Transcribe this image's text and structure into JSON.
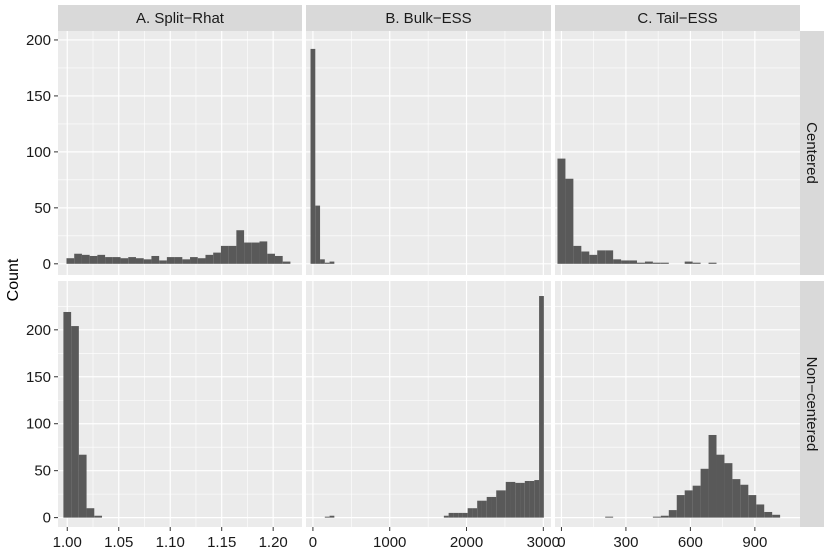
{
  "chart_data": {
    "type": "bar",
    "title": "",
    "xlabel": "",
    "ylabel": "Count",
    "grid": true,
    "colors": {
      "panel_bg": "#ebebeb",
      "grid": "#ffffff",
      "bar": "#595959",
      "strip_bg": "#d9d9d9"
    },
    "columns": [
      {
        "label": "A. Split−Rhat",
        "xlim": [
          0.991,
          1.228
        ],
        "xticks": [
          1.0,
          1.05,
          1.1,
          1.15,
          1.2
        ],
        "xtick_labels": [
          "1.00",
          "1.05",
          "1.10",
          "1.15",
          "1.20"
        ],
        "bin_width": 0.0075
      },
      {
        "label": "B. Bulk−ESS",
        "xlim": [
          -90,
          3100
        ],
        "xticks": [
          0,
          1000,
          2000,
          3000
        ],
        "xtick_labels": [
          "0",
          "1000",
          "2000",
          "3000"
        ],
        "bin_width": 62
      },
      {
        "label": "C. Tail−ESS",
        "xlim": [
          -30,
          1110
        ],
        "xticks": [
          0,
          300,
          600,
          900
        ],
        "xtick_labels": [
          "0",
          "300",
          "600",
          "900"
        ],
        "bin_width": 37
      }
    ],
    "rows": [
      {
        "label": "Centered",
        "ylim": [
          -10,
          208
        ],
        "yticks": [
          0,
          50,
          100,
          150,
          200
        ],
        "ytick_labels": [
          "0",
          "50",
          "100",
          "150",
          "200"
        ]
      },
      {
        "label": "Non−centered",
        "ylim": [
          -10,
          252
        ],
        "yticks": [
          0,
          50,
          100,
          150,
          200
        ],
        "ytick_labels": [
          "0",
          "50",
          "100",
          "150",
          "200"
        ]
      }
    ],
    "panels": [
      {
        "row": 0,
        "col": 0,
        "bins": [
          {
            "x": 1.003,
            "count": 5
          },
          {
            "x": 1.0105,
            "count": 9
          },
          {
            "x": 1.018,
            "count": 8
          },
          {
            "x": 1.0255,
            "count": 7
          },
          {
            "x": 1.033,
            "count": 8
          },
          {
            "x": 1.0405,
            "count": 6
          },
          {
            "x": 1.048,
            "count": 6
          },
          {
            "x": 1.0555,
            "count": 5
          },
          {
            "x": 1.063,
            "count": 6
          },
          {
            "x": 1.0705,
            "count": 5
          },
          {
            "x": 1.078,
            "count": 4
          },
          {
            "x": 1.0855,
            "count": 7
          },
          {
            "x": 1.093,
            "count": 3
          },
          {
            "x": 1.1005,
            "count": 6
          },
          {
            "x": 1.108,
            "count": 6
          },
          {
            "x": 1.1155,
            "count": 4
          },
          {
            "x": 1.123,
            "count": 6
          },
          {
            "x": 1.1305,
            "count": 5
          },
          {
            "x": 1.138,
            "count": 8
          },
          {
            "x": 1.1455,
            "count": 10
          },
          {
            "x": 1.153,
            "count": 16
          },
          {
            "x": 1.1605,
            "count": 16
          },
          {
            "x": 1.168,
            "count": 30
          },
          {
            "x": 1.1755,
            "count": 19
          },
          {
            "x": 1.183,
            "count": 19
          },
          {
            "x": 1.1905,
            "count": 20
          },
          {
            "x": 1.198,
            "count": 9
          },
          {
            "x": 1.2055,
            "count": 7
          },
          {
            "x": 1.213,
            "count": 2
          }
        ]
      },
      {
        "row": 0,
        "col": 1,
        "bins": [
          {
            "x": 0,
            "count": 192
          },
          {
            "x": 62,
            "count": 52
          },
          {
            "x": 124,
            "count": 4
          },
          {
            "x": 186,
            "count": 1
          },
          {
            "x": 248,
            "count": 2
          }
        ]
      },
      {
        "row": 0,
        "col": 2,
        "bins": [
          {
            "x": 0,
            "count": 94
          },
          {
            "x": 37,
            "count": 76
          },
          {
            "x": 74,
            "count": 16
          },
          {
            "x": 111,
            "count": 11
          },
          {
            "x": 148,
            "count": 8
          },
          {
            "x": 185,
            "count": 12
          },
          {
            "x": 222,
            "count": 12
          },
          {
            "x": 259,
            "count": 4
          },
          {
            "x": 296,
            "count": 3
          },
          {
            "x": 333,
            "count": 3
          },
          {
            "x": 370,
            "count": 1
          },
          {
            "x": 407,
            "count": 2
          },
          {
            "x": 444,
            "count": 1
          },
          {
            "x": 481,
            "count": 1
          },
          {
            "x": 592,
            "count": 2
          },
          {
            "x": 629,
            "count": 1
          },
          {
            "x": 703,
            "count": 1
          }
        ]
      },
      {
        "row": 1,
        "col": 0,
        "bins": [
          {
            "x": 1.0,
            "count": 219
          },
          {
            "x": 1.0075,
            "count": 204
          },
          {
            "x": 1.015,
            "count": 67
          },
          {
            "x": 1.0225,
            "count": 10
          },
          {
            "x": 1.03,
            "count": 2
          }
        ]
      },
      {
        "row": 1,
        "col": 1,
        "bins": [
          {
            "x": 186,
            "count": 1
          },
          {
            "x": 248,
            "count": 2
          },
          {
            "x": 1736,
            "count": 2
          },
          {
            "x": 1798,
            "count": 5
          },
          {
            "x": 1860,
            "count": 5
          },
          {
            "x": 1922,
            "count": 5
          },
          {
            "x": 1984,
            "count": 5
          },
          {
            "x": 2046,
            "count": 10
          },
          {
            "x": 2108,
            "count": 10
          },
          {
            "x": 2170,
            "count": 18
          },
          {
            "x": 2232,
            "count": 18
          },
          {
            "x": 2294,
            "count": 22
          },
          {
            "x": 2356,
            "count": 22
          },
          {
            "x": 2418,
            "count": 29
          },
          {
            "x": 2480,
            "count": 29
          },
          {
            "x": 2542,
            "count": 38
          },
          {
            "x": 2604,
            "count": 38
          },
          {
            "x": 2666,
            "count": 37
          },
          {
            "x": 2728,
            "count": 37
          },
          {
            "x": 2790,
            "count": 39
          },
          {
            "x": 2852,
            "count": 39
          },
          {
            "x": 2914,
            "count": 40
          },
          {
            "x": 2976,
            "count": 236
          }
        ]
      },
      {
        "row": 1,
        "col": 2,
        "bins": [
          {
            "x": 222,
            "count": 1
          },
          {
            "x": 444,
            "count": 1
          },
          {
            "x": 481,
            "count": 2
          },
          {
            "x": 518,
            "count": 8
          },
          {
            "x": 555,
            "count": 24
          },
          {
            "x": 592,
            "count": 29
          },
          {
            "x": 629,
            "count": 34
          },
          {
            "x": 666,
            "count": 52
          },
          {
            "x": 703,
            "count": 88
          },
          {
            "x": 740,
            "count": 67
          },
          {
            "x": 777,
            "count": 58
          },
          {
            "x": 814,
            "count": 41
          },
          {
            "x": 851,
            "count": 35
          },
          {
            "x": 888,
            "count": 24
          },
          {
            "x": 925,
            "count": 14
          },
          {
            "x": 962,
            "count": 6
          },
          {
            "x": 999,
            "count": 3
          }
        ]
      }
    ]
  }
}
